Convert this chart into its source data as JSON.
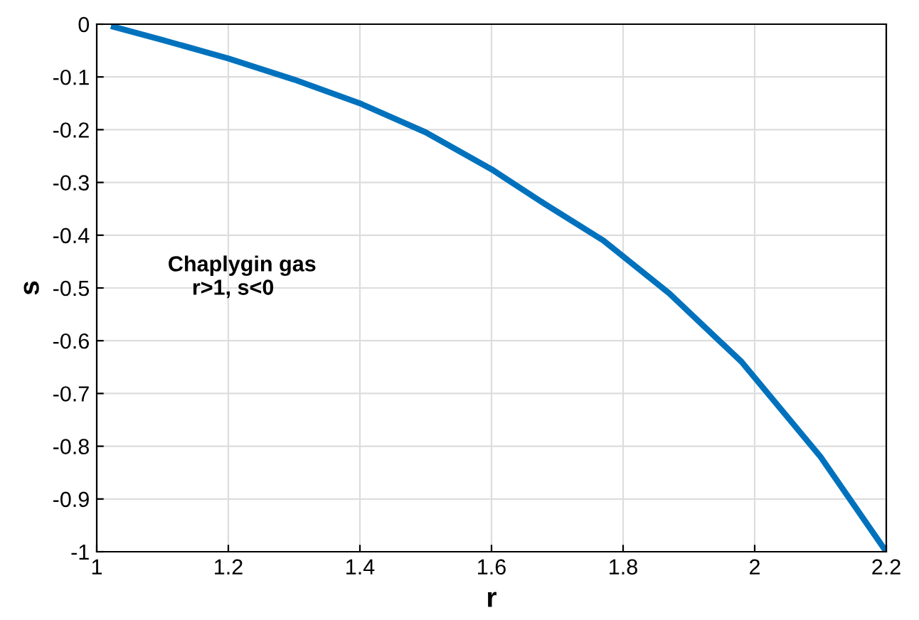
{
  "chart_data": {
    "type": "line",
    "xlabel": "r",
    "ylabel": "s",
    "annotations": [
      "Chaplygin gas\n    r>1, s<0"
    ],
    "series": [
      {
        "color": "#0072bd",
        "x": [
          1.026,
          1.1,
          1.2,
          1.3,
          1.4,
          1.5,
          1.6,
          1.68,
          1.77,
          1.87,
          1.98,
          2.1,
          2.2
        ],
        "values": [
          -0.005,
          -0.03,
          -0.065,
          -0.105,
          -0.15,
          -0.205,
          -0.275,
          -0.34,
          -0.41,
          -0.51,
          -0.64,
          -0.82,
          -1.0
        ]
      }
    ],
    "xlim": [
      1,
      2.2
    ],
    "xticks": [
      1,
      1.2,
      1.4,
      1.6,
      1.8,
      2,
      2.2
    ],
    "ylim": [
      -1,
      0
    ],
    "yticks": [
      -1,
      -0.9,
      -0.8,
      -0.7,
      -0.6,
      -0.5,
      -0.4,
      -0.3,
      -0.2,
      -0.1,
      0
    ],
    "grid": true,
    "marker": "none",
    "line_style": "solid",
    "legend": false
  }
}
